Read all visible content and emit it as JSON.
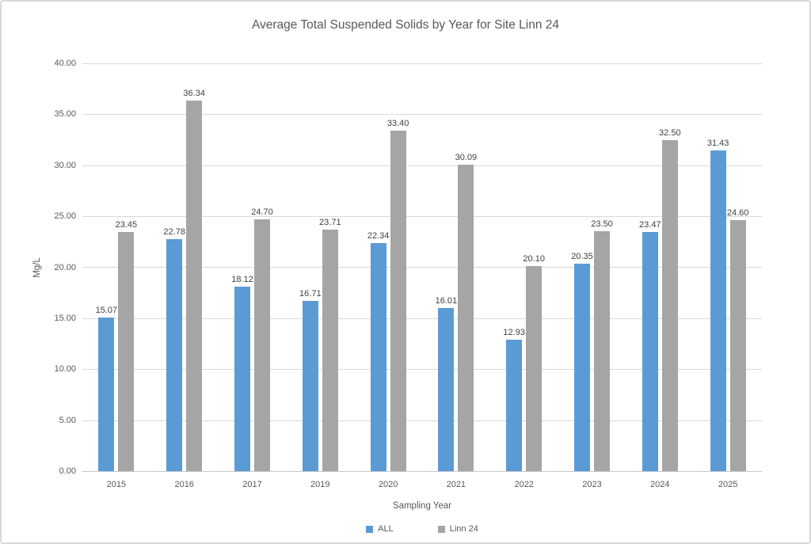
{
  "chart_data": {
    "type": "bar",
    "title": "Average Total Suspended Solids by Year for Site Linn 24",
    "xlabel": "Sampling Year",
    "ylabel": "Mg/L",
    "categories": [
      "2015",
      "2016",
      "2017",
      "2019",
      "2020",
      "2021",
      "2022",
      "2023",
      "2024",
      "2025"
    ],
    "series": [
      {
        "name": "ALL",
        "color": "#5b9bd5",
        "values": [
          15.07,
          22.78,
          18.12,
          16.71,
          22.34,
          16.01,
          12.93,
          20.35,
          23.47,
          31.43
        ]
      },
      {
        "name": "Linn 24",
        "color": "#a5a5a5",
        "values": [
          23.45,
          36.34,
          24.7,
          23.71,
          33.4,
          30.09,
          20.1,
          23.5,
          32.5,
          24.6
        ]
      }
    ],
    "ylim": [
      0,
      40
    ],
    "ytick_step": 5,
    "ytick_decimals": 2,
    "data_label_decimals": 2,
    "grid": true,
    "legend_position": "bottom",
    "data_labels": true
  },
  "colors": {
    "grid": "#d9d9d9",
    "axis_text": "#595959",
    "data_label_text": "#404040",
    "frame_border": "#d9d9d9",
    "background": "#ffffff"
  }
}
